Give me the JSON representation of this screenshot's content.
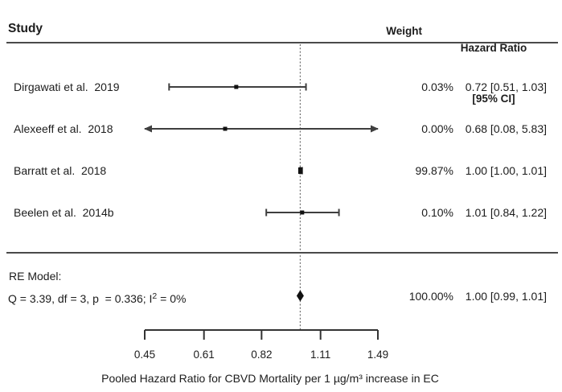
{
  "header": {
    "study": "Study",
    "weight": "Weight",
    "hazard_ratio": "Hazard Ratio",
    "ci": "[95% CI]"
  },
  "chart_data": {
    "type": "scatter",
    "subtype": "forest-plot",
    "x_scale": "log",
    "x_ticks": [
      0.45,
      0.61,
      0.82,
      1.11,
      1.49
    ],
    "x_tick_labels": [
      "0.45",
      "0.61",
      "0.82",
      "1.11",
      "1.49"
    ],
    "reference_line": 1.0,
    "xlabel": "Pooled Hazard Ratio for CBVD Mortality per 1 µg/m³ increase in EC",
    "studies": [
      {
        "label": "Dirgawati et al.  2019",
        "hr": 0.72,
        "ci_low": 0.51,
        "ci_high": 1.03,
        "weight_pct": 0.03,
        "weight_text": "0.03%",
        "ci_text": "0.72 [0.51, 1.03]"
      },
      {
        "label": "Alexeeff et al.  2018",
        "hr": 0.68,
        "ci_low": 0.08,
        "ci_high": 5.83,
        "weight_pct": 0.0,
        "weight_text": "0.00%",
        "ci_text": "0.68 [0.08, 5.83]"
      },
      {
        "label": "Barratt et al.  2018",
        "hr": 1.0,
        "ci_low": 1.0,
        "ci_high": 1.01,
        "weight_pct": 99.87,
        "weight_text": "99.87%",
        "ci_text": "1.00 [1.00, 1.01]"
      },
      {
        "label": "Beelen et al.  2014b",
        "hr": 1.01,
        "ci_low": 0.84,
        "ci_high": 1.22,
        "weight_pct": 0.1,
        "weight_text": "0.10%",
        "ci_text": "1.01 [0.84, 1.22]"
      }
    ],
    "summary_row": {
      "label": "RE Model:",
      "stats_prefix": "Q = 3.39, df = 3, p  = 0.336; I",
      "stats_sup": "2",
      "stats_suffix": " = 0%",
      "hr": 1.0,
      "ci_low": 0.99,
      "ci_high": 1.01,
      "weight_pct": 100.0,
      "weight_text": "100.00%",
      "ci_text": "1.00 [0.99, 1.01]"
    }
  },
  "colors": {
    "text": "#1c1c1c",
    "ci_line": "#3f3f3f",
    "marker": "#111111",
    "rule": "#4a4a4a",
    "dotted": "#6e6e6e",
    "axis": "#333333"
  }
}
